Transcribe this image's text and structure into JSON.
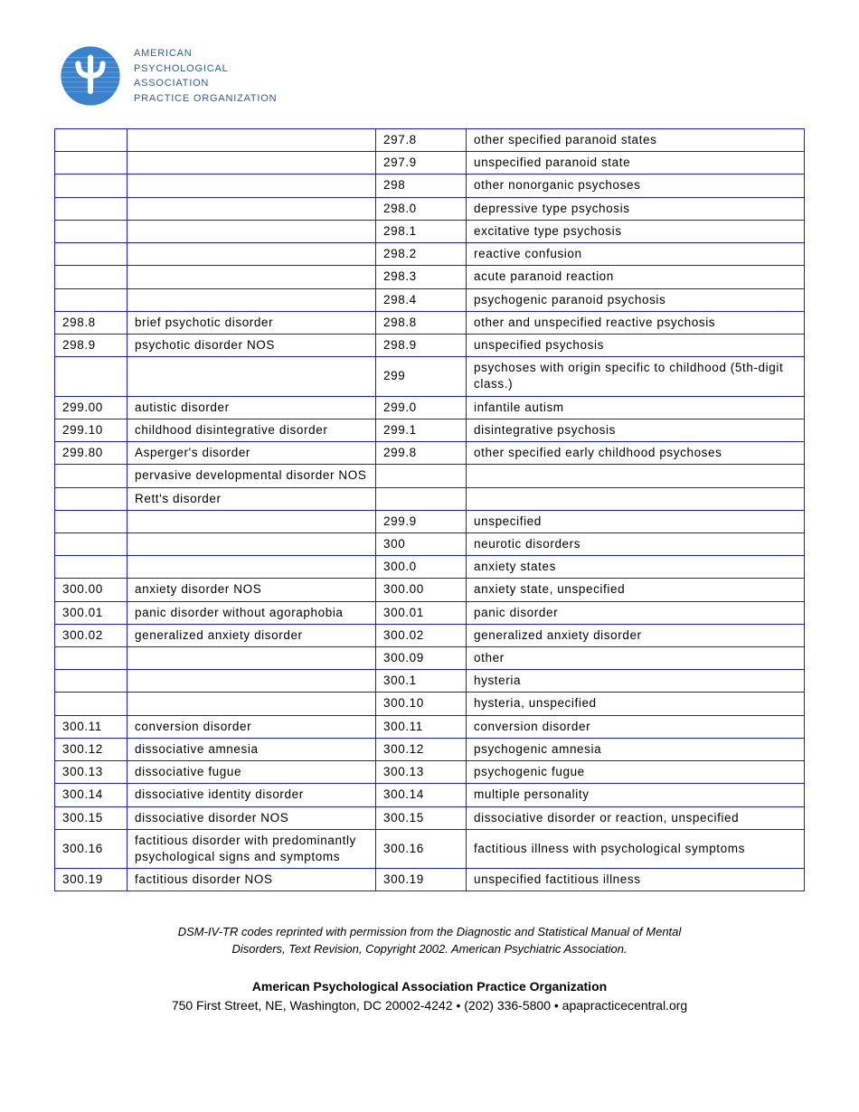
{
  "header": {
    "org_line1": "AMERICAN",
    "org_line2": "PSYCHOLOGICAL",
    "org_line3": "ASSOCIATION",
    "org_line4": "PRACTICE ORGANIZATION",
    "logo_colors": {
      "outer": "#2e78c4",
      "inner": "#1a5aa6",
      "psi": "#ffffff"
    }
  },
  "table": {
    "border_color": "#1a1adf",
    "columns": [
      "c1",
      "c2",
      "c3",
      "c4"
    ],
    "rows": [
      [
        "",
        "",
        "297.8",
        "other specified paranoid states"
      ],
      [
        "",
        "",
        "297.9",
        "unspecified paranoid state"
      ],
      [
        "",
        "",
        "298",
        "other nonorganic psychoses"
      ],
      [
        "",
        "",
        "298.0",
        "depressive type psychosis"
      ],
      [
        "",
        "",
        "298.1",
        "excitative type psychosis"
      ],
      [
        "",
        "",
        "298.2",
        "reactive confusion"
      ],
      [
        "",
        "",
        "298.3",
        "acute paranoid reaction"
      ],
      [
        "",
        "",
        "298.4",
        "psychogenic paranoid psychosis"
      ],
      [
        "298.8",
        "brief psychotic disorder",
        "298.8",
        "other and unspecified reactive psychosis"
      ],
      [
        "298.9",
        "psychotic disorder NOS",
        "298.9",
        "unspecified psychosis"
      ],
      [
        "",
        "",
        "299",
        "psychoses with origin specific to childhood (5th-digit class.)"
      ],
      [
        "299.00",
        "autistic disorder",
        "299.0",
        "infantile autism"
      ],
      [
        "299.10",
        "childhood disintegrative disorder",
        "299.1",
        "disintegrative psychosis"
      ],
      [
        "299.80",
        "Asperger's disorder",
        "299.8",
        "other specified early childhood psychoses"
      ],
      [
        "",
        "pervasive developmental disorder NOS",
        "",
        ""
      ],
      [
        "",
        "Rett's disorder",
        "",
        ""
      ],
      [
        "",
        "",
        "299.9",
        "unspecified"
      ],
      [
        "",
        "",
        "300",
        "neurotic disorders"
      ],
      [
        "",
        "",
        "300.0",
        "anxiety states"
      ],
      [
        "300.00",
        "anxiety disorder NOS",
        "300.00",
        "anxiety state, unspecified"
      ],
      [
        "300.01",
        "panic disorder without agoraphobia",
        "300.01",
        "panic disorder"
      ],
      [
        "300.02",
        "generalized anxiety disorder",
        "300.02",
        "generalized anxiety disorder"
      ],
      [
        "",
        "",
        "300.09",
        "other"
      ],
      [
        "",
        "",
        "300.1",
        "hysteria"
      ],
      [
        "",
        "",
        "300.10",
        "hysteria, unspecified"
      ],
      [
        "300.11",
        "conversion disorder",
        "300.11",
        "conversion disorder"
      ],
      [
        "300.12",
        "dissociative amnesia",
        "300.12",
        "psychogenic amnesia"
      ],
      [
        "300.13",
        "dissociative fugue",
        "300.13",
        "psychogenic fugue"
      ],
      [
        "300.14",
        "dissociative identity disorder",
        "300.14",
        "multiple personality"
      ],
      [
        "300.15",
        "dissociative disorder NOS",
        "300.15",
        "dissociative disorder or reaction, unspecified"
      ],
      [
        "300.16",
        "factitious disorder with predominantly psychological signs and symptoms",
        "300.16",
        "factitious illness with psychological symptoms"
      ],
      [
        "300.19",
        "factitious disorder NOS",
        "300.19",
        "unspecified factitious illness"
      ]
    ]
  },
  "footnote": {
    "line1": "DSM-IV-TR codes reprinted with permission from the Diagnostic and Statistical Manual of Mental",
    "line2": "Disorders, Text Revision, Copyright 2002. American Psychiatric Association."
  },
  "footer": {
    "title": "American Psychological Association Practice Organization",
    "address": "750 First Street, NE, Washington, DC 20002-4242 • (202) 336-5800 • apapracticecentral.org"
  }
}
